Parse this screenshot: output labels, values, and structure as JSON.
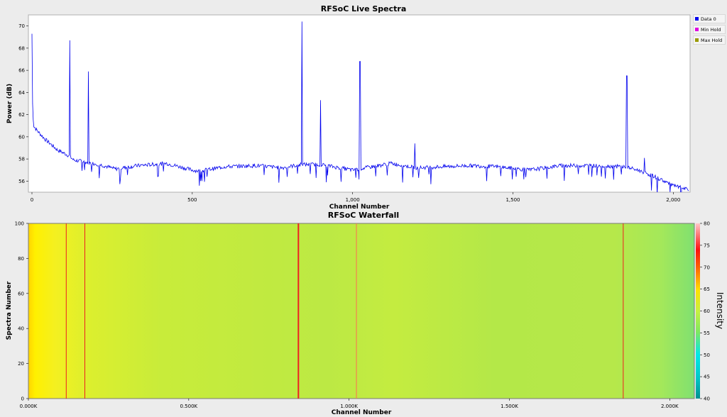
{
  "chart_data": [
    {
      "type": "line",
      "title": "RFSoC Live Spectra",
      "xlabel": "Channel Number",
      "ylabel": "Power (dB)",
      "xlim": [
        0,
        2048
      ],
      "ylim": [
        55,
        71
      ],
      "x_ticks": [
        "0",
        "500",
        "1,000",
        "1,500",
        "2,000"
      ],
      "y_ticks": [
        "56",
        "58",
        "60",
        "62",
        "64",
        "66",
        "68",
        "70"
      ],
      "legend": [
        "Data 0",
        "Min Hold",
        "Max Hold"
      ],
      "legend_placement": "right",
      "series_colors": {
        "Data 0": "#0000ee",
        "Min Hold": "#e000e0",
        "Max Hold": "#9a9a00"
      },
      "baseline": [
        [
          0,
          69.3
        ],
        [
          2,
          63
        ],
        [
          5,
          61
        ],
        [
          15,
          60.6
        ],
        [
          40,
          59.8
        ],
        [
          80,
          58.8
        ],
        [
          115,
          58.3
        ],
        [
          130,
          57.9
        ],
        [
          170,
          57.7
        ],
        [
          210,
          57.5
        ],
        [
          260,
          57.1
        ],
        [
          330,
          57.4
        ],
        [
          420,
          57.6
        ],
        [
          500,
          57.0
        ],
        [
          520,
          56.9
        ],
        [
          600,
          57.3
        ],
        [
          700,
          57.4
        ],
        [
          780,
          57.2
        ],
        [
          840,
          57.5
        ],
        [
          900,
          57.5
        ],
        [
          1000,
          57.0
        ],
        [
          1060,
          57.3
        ],
        [
          1120,
          57.6
        ],
        [
          1200,
          57.2
        ],
        [
          1280,
          57.3
        ],
        [
          1360,
          57.4
        ],
        [
          1450,
          57.3
        ],
        [
          1550,
          57.0
        ],
        [
          1650,
          57.4
        ],
        [
          1750,
          57.4
        ],
        [
          1850,
          57.3
        ],
        [
          1900,
          56.9
        ],
        [
          1950,
          56.3
        ],
        [
          2000,
          55.6
        ],
        [
          2048,
          55.2
        ]
      ],
      "peaks": [
        {
          "channel": 118,
          "power": 68.7
        },
        {
          "channel": 176,
          "power": 65.9
        },
        {
          "channel": 842,
          "power": 70.4
        },
        {
          "channel": 900,
          "power": 63.3
        },
        {
          "channel": 1023,
          "power": 66.8
        },
        {
          "channel": 1194,
          "power": 59.4
        },
        {
          "channel": 1855,
          "power": 65.5
        },
        {
          "channel": 1910,
          "power": 58.1
        }
      ]
    },
    {
      "type": "heatmap",
      "title": "RFSoC Waterfall",
      "xlabel": "Channel Number",
      "ylabel": "Spectra Number",
      "xlim": [
        0,
        2048
      ],
      "ylim": [
        0,
        100
      ],
      "x_ticks": [
        "0.000K",
        "0.500K",
        "1.000K",
        "1.500K",
        "2.000K"
      ],
      "y_ticks": [
        "0",
        "20",
        "40",
        "60",
        "80",
        "100"
      ],
      "colorbar_label": "Intensity",
      "colorbar_range": [
        40,
        80
      ],
      "colorbar_ticks": [
        "40",
        "45",
        "50",
        "55",
        "60",
        "65",
        "70",
        "75",
        "80"
      ],
      "hot_channels": [
        118,
        176,
        842,
        1023,
        1855
      ]
    }
  ]
}
